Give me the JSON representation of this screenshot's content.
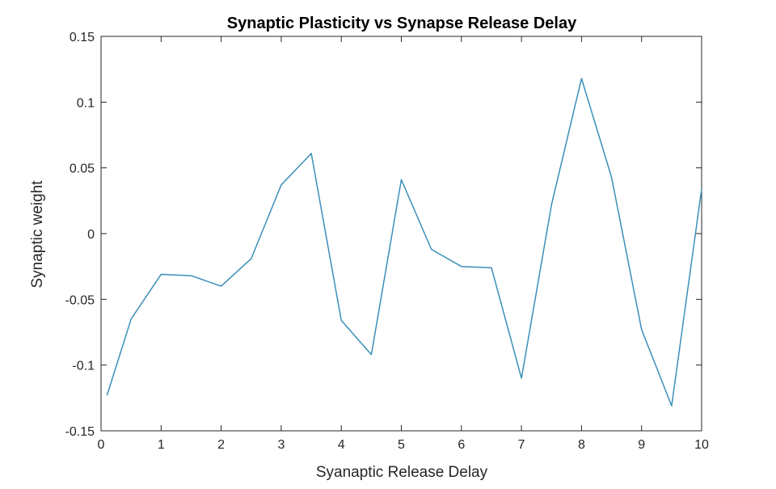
{
  "chart_data": {
    "type": "line",
    "title": "Synaptic Plasticity vs Synapse Release Delay",
    "xlabel": "Syanaptic Release Delay",
    "ylabel": "Synaptic weight",
    "xlim": [
      0,
      10
    ],
    "ylim": [
      -0.15,
      0.15
    ],
    "xticks": [
      0,
      1,
      2,
      3,
      4,
      5,
      6,
      7,
      8,
      9,
      10
    ],
    "xtick_labels": [
      "0",
      "1",
      "2",
      "3",
      "4",
      "5",
      "6",
      "7",
      "8",
      "9",
      "10"
    ],
    "yticks": [
      0.15,
      0.1,
      0.05,
      0,
      -0.05,
      -0.1,
      -0.15
    ],
    "ytick_labels": [
      "0.15",
      "0.1",
      "0.05",
      "0",
      "-0.05",
      "-0.1",
      "-0.15"
    ],
    "grid": false,
    "box": true,
    "series": [
      {
        "color": "#3b8fb8",
        "x": [
          0.1,
          0.5,
          1.0,
          1.5,
          2.0,
          2.5,
          3.0,
          3.5,
          4.0,
          4.5,
          5.0,
          5.5,
          6.0,
          6.5,
          7.0,
          7.5,
          8.0,
          8.5,
          9.0,
          9.5,
          10.0
        ],
        "y": [
          -0.123,
          -0.065,
          -0.031,
          -0.032,
          -0.04,
          -0.019,
          0.037,
          0.061,
          -0.066,
          -0.092,
          0.041,
          -0.012,
          -0.025,
          -0.026,
          -0.11,
          0.022,
          0.118,
          0.043,
          -0.073,
          -0.131,
          0.034
        ]
      }
    ]
  }
}
